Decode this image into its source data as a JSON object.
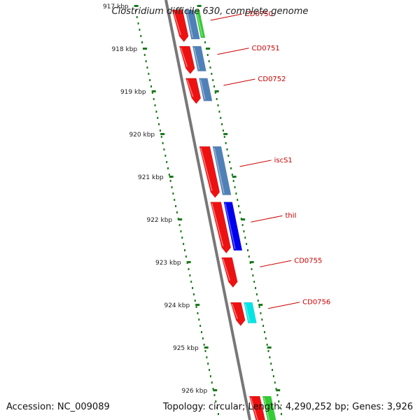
{
  "title": "Clostridium difficile 630, complete genome",
  "footer": {
    "accession": "Accession: NC_009089",
    "summary": "Topology: circular; Length: 4,290,252 bp; Genes: 3,926"
  },
  "colors": {
    "backbone": "#777777",
    "tick": "#1a7a1a",
    "cds_red": "#ee1111",
    "steel_blue": "#4f81b8",
    "blue": "#0000ee",
    "green": "#33cc33",
    "cyan": "#00e5e5",
    "label": "#cc0000"
  },
  "kbp_labels": [
    "917 kbp",
    "918 kbp",
    "919 kbp",
    "920 kbp",
    "921 kbp",
    "922 kbp",
    "923 kbp",
    "924 kbp",
    "925 kbp",
    "926 kbp"
  ],
  "kbp_values": [
    917,
    918,
    919,
    920,
    921,
    922,
    923,
    924,
    925,
    926
  ],
  "genes": [
    {
      "label": "CD0750",
      "start": 917.1,
      "end": 917.85
    },
    {
      "label": "CD0751",
      "start": 917.95,
      "end": 918.6
    },
    {
      "label": "CD0752",
      "start": 918.7,
      "end": 919.3
    },
    {
      "label": "iscS1",
      "start": 920.3,
      "end": 921.5
    },
    {
      "label": "thiI",
      "start": 921.6,
      "end": 922.8
    },
    {
      "label": "CD0755",
      "start": 922.9,
      "end": 923.6
    },
    {
      "label": "CD0756",
      "start": 923.95,
      "end": 924.5
    }
  ]
}
